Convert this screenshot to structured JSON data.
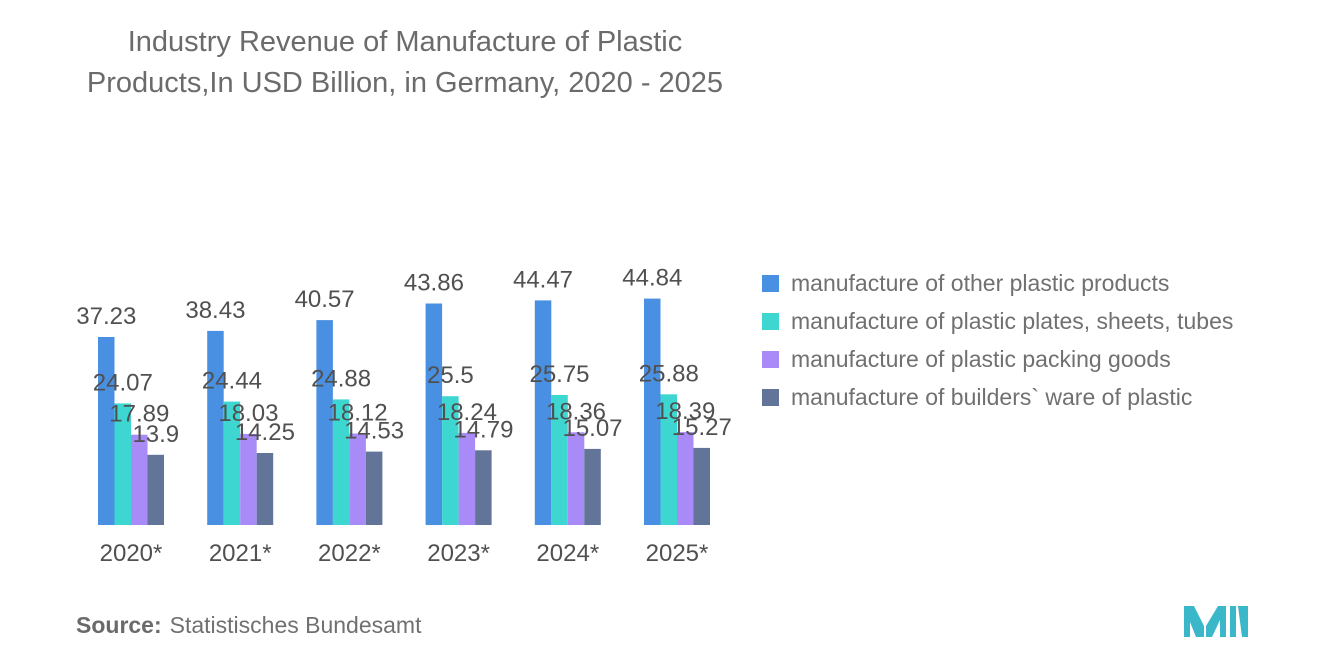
{
  "chart_data": {
    "type": "bar",
    "title": "Industry Revenue of Manufacture of Plastic Products,In USD Billion, in Germany, 2020 - 2025",
    "categories": [
      "2020*",
      "2021*",
      "2022*",
      "2023*",
      "2024*",
      "2025*"
    ],
    "series": [
      {
        "name": "manufacture of other plastic products",
        "color": "#4a90e2",
        "values": [
          37.23,
          38.43,
          40.57,
          43.86,
          44.47,
          44.84
        ]
      },
      {
        "name": "manufacture of plastic plates, sheets, tubes",
        "color": "#3ed6d1",
        "values": [
          24.07,
          24.44,
          24.88,
          25.5,
          25.75,
          25.88
        ]
      },
      {
        "name": "manufacture of plastic packing goods",
        "color": "#a88bf7",
        "values": [
          17.89,
          18.03,
          18.12,
          18.24,
          18.36,
          18.39
        ]
      },
      {
        "name": "manufacture of builders` ware of plastic",
        "color": "#627599",
        "values": [
          13.9,
          14.25,
          14.53,
          14.79,
          15.07,
          15.27
        ]
      }
    ],
    "xlabel": "",
    "ylabel": "",
    "ylim": [
      0,
      50
    ],
    "grid": false,
    "legend": "right"
  },
  "source": {
    "label": "Source:",
    "text": "Statistisches Bundesamt"
  },
  "logo": {
    "name": "mordor-intelligence-logo",
    "color": "#3ab7c8"
  }
}
